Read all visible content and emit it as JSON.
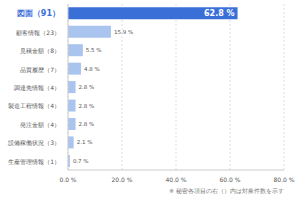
{
  "chart_data": {
    "type": "bar",
    "orientation": "horizontal",
    "categories": [
      "図面（91）",
      "顧客情報（23）",
      "見積金額（8）",
      "品質履歴（7）",
      "調達先情報（4）",
      "製造工程情報（4）",
      "発注金額（4）",
      "設備稼働状況（3）",
      "生産管理情報（1）"
    ],
    "values": [
      62.8,
      15.9,
      5.5,
      4.8,
      2.8,
      2.8,
      2.8,
      2.1,
      0.7
    ],
    "value_labels": [
      "62.8 %",
      "15.9 %",
      "5.5 %",
      "4.8 %",
      "2.8 %",
      "2.8 %",
      "2.8 %",
      "2.1 %",
      "0.7 %"
    ],
    "data_labels": true,
    "colors": [
      "#3a6fd8",
      "#a9c4ee",
      "#a9c4ee",
      "#a9c4ee",
      "#a9c4ee",
      "#a9c4ee",
      "#a9c4ee",
      "#a9c4ee",
      "#a9c4ee"
    ],
    "xlim": [
      0,
      80
    ],
    "xticks": [
      {
        "value": 0,
        "label": "0.0 %"
      },
      {
        "value": 20,
        "label": "20.0 %"
      },
      {
        "value": 40,
        "label": "40.0 %"
      },
      {
        "value": 60,
        "label": "60.0 %"
      },
      {
        "value": 80,
        "label": "80.0 %"
      }
    ],
    "grid": true,
    "annotations": [
      "※ 秘密各項目の右（）内は対象件数を示す"
    ]
  }
}
